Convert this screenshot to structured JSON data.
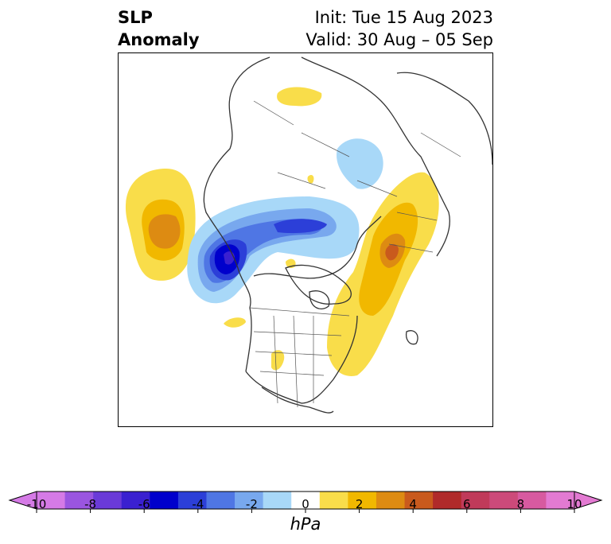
{
  "title": {
    "left_line1": "SLP",
    "left_line2": "Anomaly",
    "right_line1": "Init: Tue 15 Aug 2023",
    "right_line2": "Valid: 30 Aug – 05 Sep"
  },
  "colorbar": {
    "units": "hPa",
    "tick_labels": [
      "-10",
      "-8",
      "-6",
      "-4",
      "-2",
      "0",
      "2",
      "4",
      "6",
      "8",
      "10"
    ],
    "colors": [
      "#d57ae6",
      "#9a55e0",
      "#6a3ad8",
      "#3a20d0",
      "#0000cc",
      "#2c3fd8",
      "#4f76e4",
      "#78a8ee",
      "#a8d8f8",
      "#ffffff",
      "#f9dd4a",
      "#f1b800",
      "#dd8b12",
      "#c95a1d",
      "#b02a2a",
      "#c03a5a",
      "#cc4a7a",
      "#d75aa0",
      "#e37ad2"
    ],
    "extend_low_color": "#d57ae6",
    "extend_high_color": "#e37ad2"
  }
}
